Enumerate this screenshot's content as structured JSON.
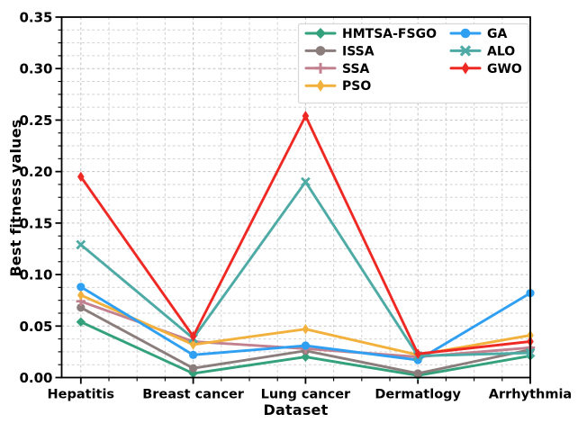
{
  "chart_data": {
    "type": "line",
    "title": "",
    "xlabel": "Dataset",
    "ylabel": "Best fitness values",
    "categories": [
      "Hepatitis",
      "Breast cancer",
      "Lung cancer",
      "Dermatlogy",
      "Arrhythmia"
    ],
    "ylim": [
      0,
      0.35
    ],
    "ytick_labels": [
      "0.00",
      "0.05",
      "0.10",
      "0.15",
      "0.20",
      "0.25",
      "0.30",
      "0.35"
    ],
    "grid": "dashed major and minor gridlines, light gray",
    "legend_position": "upper right inside plot, two columns",
    "series": [
      {
        "name": "HMTSA-FSGO",
        "color": "#33a17c",
        "marker": "diamond",
        "values": [
          0.054,
          0.004,
          0.02,
          0.002,
          0.021
        ]
      },
      {
        "name": "ISSA",
        "color": "#8a7d7b",
        "marker": "circle",
        "values": [
          0.068,
          0.009,
          0.026,
          0.004,
          0.027
        ]
      },
      {
        "name": "SSA",
        "color": "#c3808f",
        "marker": "plus",
        "values": [
          0.074,
          0.035,
          0.028,
          0.02,
          0.029
        ]
      },
      {
        "name": "PSO",
        "color": "#f2b13c",
        "marker": "thin-diamond",
        "values": [
          0.08,
          0.032,
          0.047,
          0.022,
          0.041
        ]
      },
      {
        "name": "GA",
        "color": "#2f9ff2",
        "marker": "circle",
        "values": [
          0.088,
          0.022,
          0.031,
          0.017,
          0.082
        ]
      },
      {
        "name": "ALO",
        "color": "#4daaa4",
        "marker": "x",
        "values": [
          0.129,
          0.038,
          0.19,
          0.021,
          0.024
        ]
      },
      {
        "name": "GWO",
        "color": "#ee2924",
        "marker": "thin-diamond",
        "values": [
          0.195,
          0.04,
          0.254,
          0.023,
          0.035
        ]
      }
    ]
  }
}
